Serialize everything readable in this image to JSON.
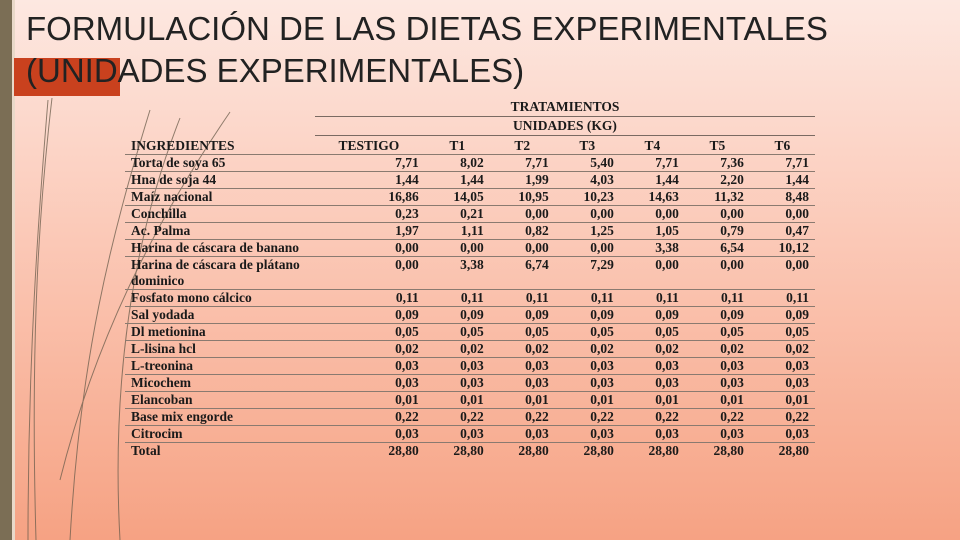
{
  "slide": {
    "title": "FORMULACIÓN DE LAS DIETAS EXPERIMENTALES (UNIDADES EXPERIMENTALES)"
  },
  "table": {
    "group_header": "TRATAMIENTOS",
    "units_header": "UNIDADES (KG)",
    "columns": [
      "INGREDIENTES",
      "TESTIGO",
      "T1",
      "T2",
      "T3",
      "T4",
      "T5",
      "T6"
    ],
    "rows": [
      {
        "name": "Torta de soya 65",
        "values": [
          "7,71",
          "8,02",
          "7,71",
          "5,40",
          "7,71",
          "7,36",
          "7,71"
        ]
      },
      {
        "name": "Hna de soja 44",
        "values": [
          "1,44",
          "1,44",
          "1,99",
          "4,03",
          "1,44",
          "2,20",
          "1,44"
        ]
      },
      {
        "name": "Maíz nacional",
        "values": [
          "16,86",
          "14,05",
          "10,95",
          "10,23",
          "14,63",
          "11,32",
          "8,48"
        ]
      },
      {
        "name": "Conchilla",
        "values": [
          "0,23",
          "0,21",
          "0,00",
          "0,00",
          "0,00",
          "0,00",
          "0,00"
        ]
      },
      {
        "name": "Ac. Palma",
        "values": [
          "1,97",
          "1,11",
          "0,82",
          "1,25",
          "1,05",
          "0,79",
          "0,47"
        ]
      },
      {
        "name": "Harina de cáscara de banano",
        "values": [
          "0,00",
          "0,00",
          "0,00",
          "0,00",
          "3,38",
          "6,54",
          "10,12"
        ]
      },
      {
        "name": "Harina de cáscara de plátano dominico",
        "values": [
          "0,00",
          "3,38",
          "6,74",
          "7,29",
          "0,00",
          "0,00",
          "0,00"
        ]
      },
      {
        "name": "Fosfato mono cálcico",
        "values": [
          "0,11",
          "0,11",
          "0,11",
          "0,11",
          "0,11",
          "0,11",
          "0,11"
        ]
      },
      {
        "name": "Sal yodada",
        "values": [
          "0,09",
          "0,09",
          "0,09",
          "0,09",
          "0,09",
          "0,09",
          "0,09"
        ]
      },
      {
        "name": "Dl metionina",
        "values": [
          "0,05",
          "0,05",
          "0,05",
          "0,05",
          "0,05",
          "0,05",
          "0,05"
        ]
      },
      {
        "name": "L-lisina hcl",
        "values": [
          "0,02",
          "0,02",
          "0,02",
          "0,02",
          "0,02",
          "0,02",
          "0,02"
        ]
      },
      {
        "name": "L-treonina",
        "values": [
          "0,03",
          "0,03",
          "0,03",
          "0,03",
          "0,03",
          "0,03",
          "0,03"
        ]
      },
      {
        "name": "Micochem",
        "values": [
          "0,03",
          "0,03",
          "0,03",
          "0,03",
          "0,03",
          "0,03",
          "0,03"
        ]
      },
      {
        "name": "Elancoban",
        "values": [
          "0,01",
          "0,01",
          "0,01",
          "0,01",
          "0,01",
          "0,01",
          "0,01"
        ]
      },
      {
        "name": "Base mix engorde",
        "values": [
          "0,22",
          "0,22",
          "0,22",
          "0,22",
          "0,22",
          "0,22",
          "0,22"
        ]
      },
      {
        "name": "Citrocim",
        "values": [
          "0,03",
          "0,03",
          "0,03",
          "0,03",
          "0,03",
          "0,03",
          "0,03"
        ]
      },
      {
        "name": "Total",
        "values": [
          "28,80",
          "28,80",
          "28,80",
          "28,80",
          "28,80",
          "28,80",
          "28,80"
        ]
      }
    ]
  }
}
